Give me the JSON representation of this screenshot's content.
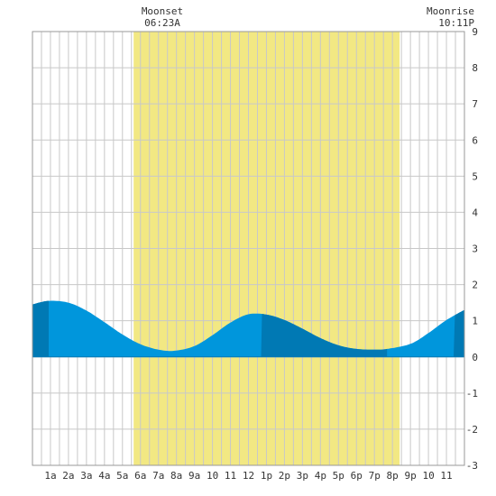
{
  "chart_data": {
    "type": "area",
    "title": "",
    "xlabel": "",
    "ylabel": "",
    "xlim": [
      0,
      24
    ],
    "ylim": [
      -3,
      9
    ],
    "x_ticks": [
      {
        "x": 1,
        "label": "1a"
      },
      {
        "x": 2,
        "label": "2a"
      },
      {
        "x": 3,
        "label": "3a"
      },
      {
        "x": 4,
        "label": "4a"
      },
      {
        "x": 5,
        "label": "5a"
      },
      {
        "x": 6,
        "label": "6a"
      },
      {
        "x": 7,
        "label": "7a"
      },
      {
        "x": 8,
        "label": "8a"
      },
      {
        "x": 9,
        "label": "9a"
      },
      {
        "x": 10,
        "label": "10"
      },
      {
        "x": 11,
        "label": "11"
      },
      {
        "x": 12,
        "label": "12"
      },
      {
        "x": 13,
        "label": "1p"
      },
      {
        "x": 14,
        "label": "2p"
      },
      {
        "x": 15,
        "label": "3p"
      },
      {
        "x": 16,
        "label": "4p"
      },
      {
        "x": 17,
        "label": "5p"
      },
      {
        "x": 18,
        "label": "6p"
      },
      {
        "x": 19,
        "label": "7p"
      },
      {
        "x": 20,
        "label": "8p"
      },
      {
        "x": 21,
        "label": "9p"
      },
      {
        "x": 22,
        "label": "10"
      },
      {
        "x": 23,
        "label": "11"
      }
    ],
    "y_ticks": [
      9,
      8,
      7,
      6,
      5,
      4,
      3,
      2,
      1,
      0,
      -1,
      -2,
      -3
    ],
    "grid": true,
    "daylight": {
      "start": 5.62,
      "end": 20.4,
      "color": "#f2e883"
    },
    "annotations": [
      {
        "id": "moonset",
        "title": "Moonset",
        "time": "06:23A",
        "x": 6.383
      },
      {
        "id": "moonrise",
        "title": "Moonrise",
        "time": "10:11P",
        "x": 22.183
      }
    ],
    "series": [
      {
        "x": [
          0,
          0.9,
          2,
          3,
          4,
          5,
          6,
          7,
          7.9,
          9,
          10,
          11,
          12,
          13,
          14,
          15,
          16,
          17,
          18,
          19,
          19.7,
          21,
          22,
          23,
          24
        ],
        "values": [
          1.45,
          1.55,
          1.5,
          1.28,
          0.96,
          0.62,
          0.35,
          0.2,
          0.17,
          0.3,
          0.6,
          0.95,
          1.18,
          1.17,
          1.02,
          0.78,
          0.52,
          0.32,
          0.22,
          0.2,
          0.22,
          0.36,
          0.66,
          1.02,
          1.3
        ]
      }
    ],
    "colors": {
      "fill_light": "#0096dc",
      "fill_dark": "#0079b4",
      "grid": "#c8c8c8",
      "border": "#999999",
      "text": "#333333"
    },
    "dark_bands": [
      [
        0,
        0.9
      ],
      [
        12.7,
        19.7
      ],
      [
        23.4,
        24
      ]
    ]
  }
}
